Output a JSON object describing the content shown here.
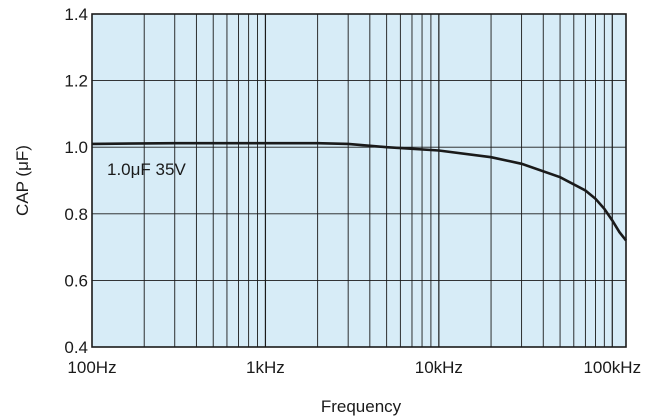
{
  "chart_data": {
    "type": "line",
    "title": "",
    "xlabel": "Frequency",
    "ylabel": "CAP (μF)",
    "x_scale": "log",
    "xlim": [
      100,
      120000
    ],
    "ylim": [
      0.4,
      1.4
    ],
    "x_ticks": [
      {
        "value": 100,
        "label": "100Hz"
      },
      {
        "value": 1000,
        "label": "1kHz"
      },
      {
        "value": 10000,
        "label": "10kHz"
      },
      {
        "value": 100000,
        "label": "100kHz"
      }
    ],
    "y_ticks": [
      {
        "value": 0.4,
        "label": "0.4"
      },
      {
        "value": 0.6,
        "label": "0.6"
      },
      {
        "value": 0.8,
        "label": "0.8"
      },
      {
        "value": 1.0,
        "label": "1.0"
      },
      {
        "value": 1.2,
        "label": "1.2"
      },
      {
        "value": 1.4,
        "label": "1.4"
      }
    ],
    "grid": true,
    "background_color": "#d7ecf7",
    "grid_color": "#1a1a1a",
    "line_color": "#1a1a1a",
    "annotation": "1.0μF  35V",
    "series": [
      {
        "x": [
          100,
          300,
          1000,
          2000,
          3000,
          5000,
          10000,
          20000,
          30000,
          50000,
          70000,
          80000,
          90000,
          100000,
          110000,
          120000
        ],
        "y": [
          1.01,
          1.012,
          1.012,
          1.012,
          1.01,
          1.0,
          0.99,
          0.97,
          0.95,
          0.91,
          0.87,
          0.845,
          0.815,
          0.78,
          0.745,
          0.72
        ]
      }
    ]
  }
}
